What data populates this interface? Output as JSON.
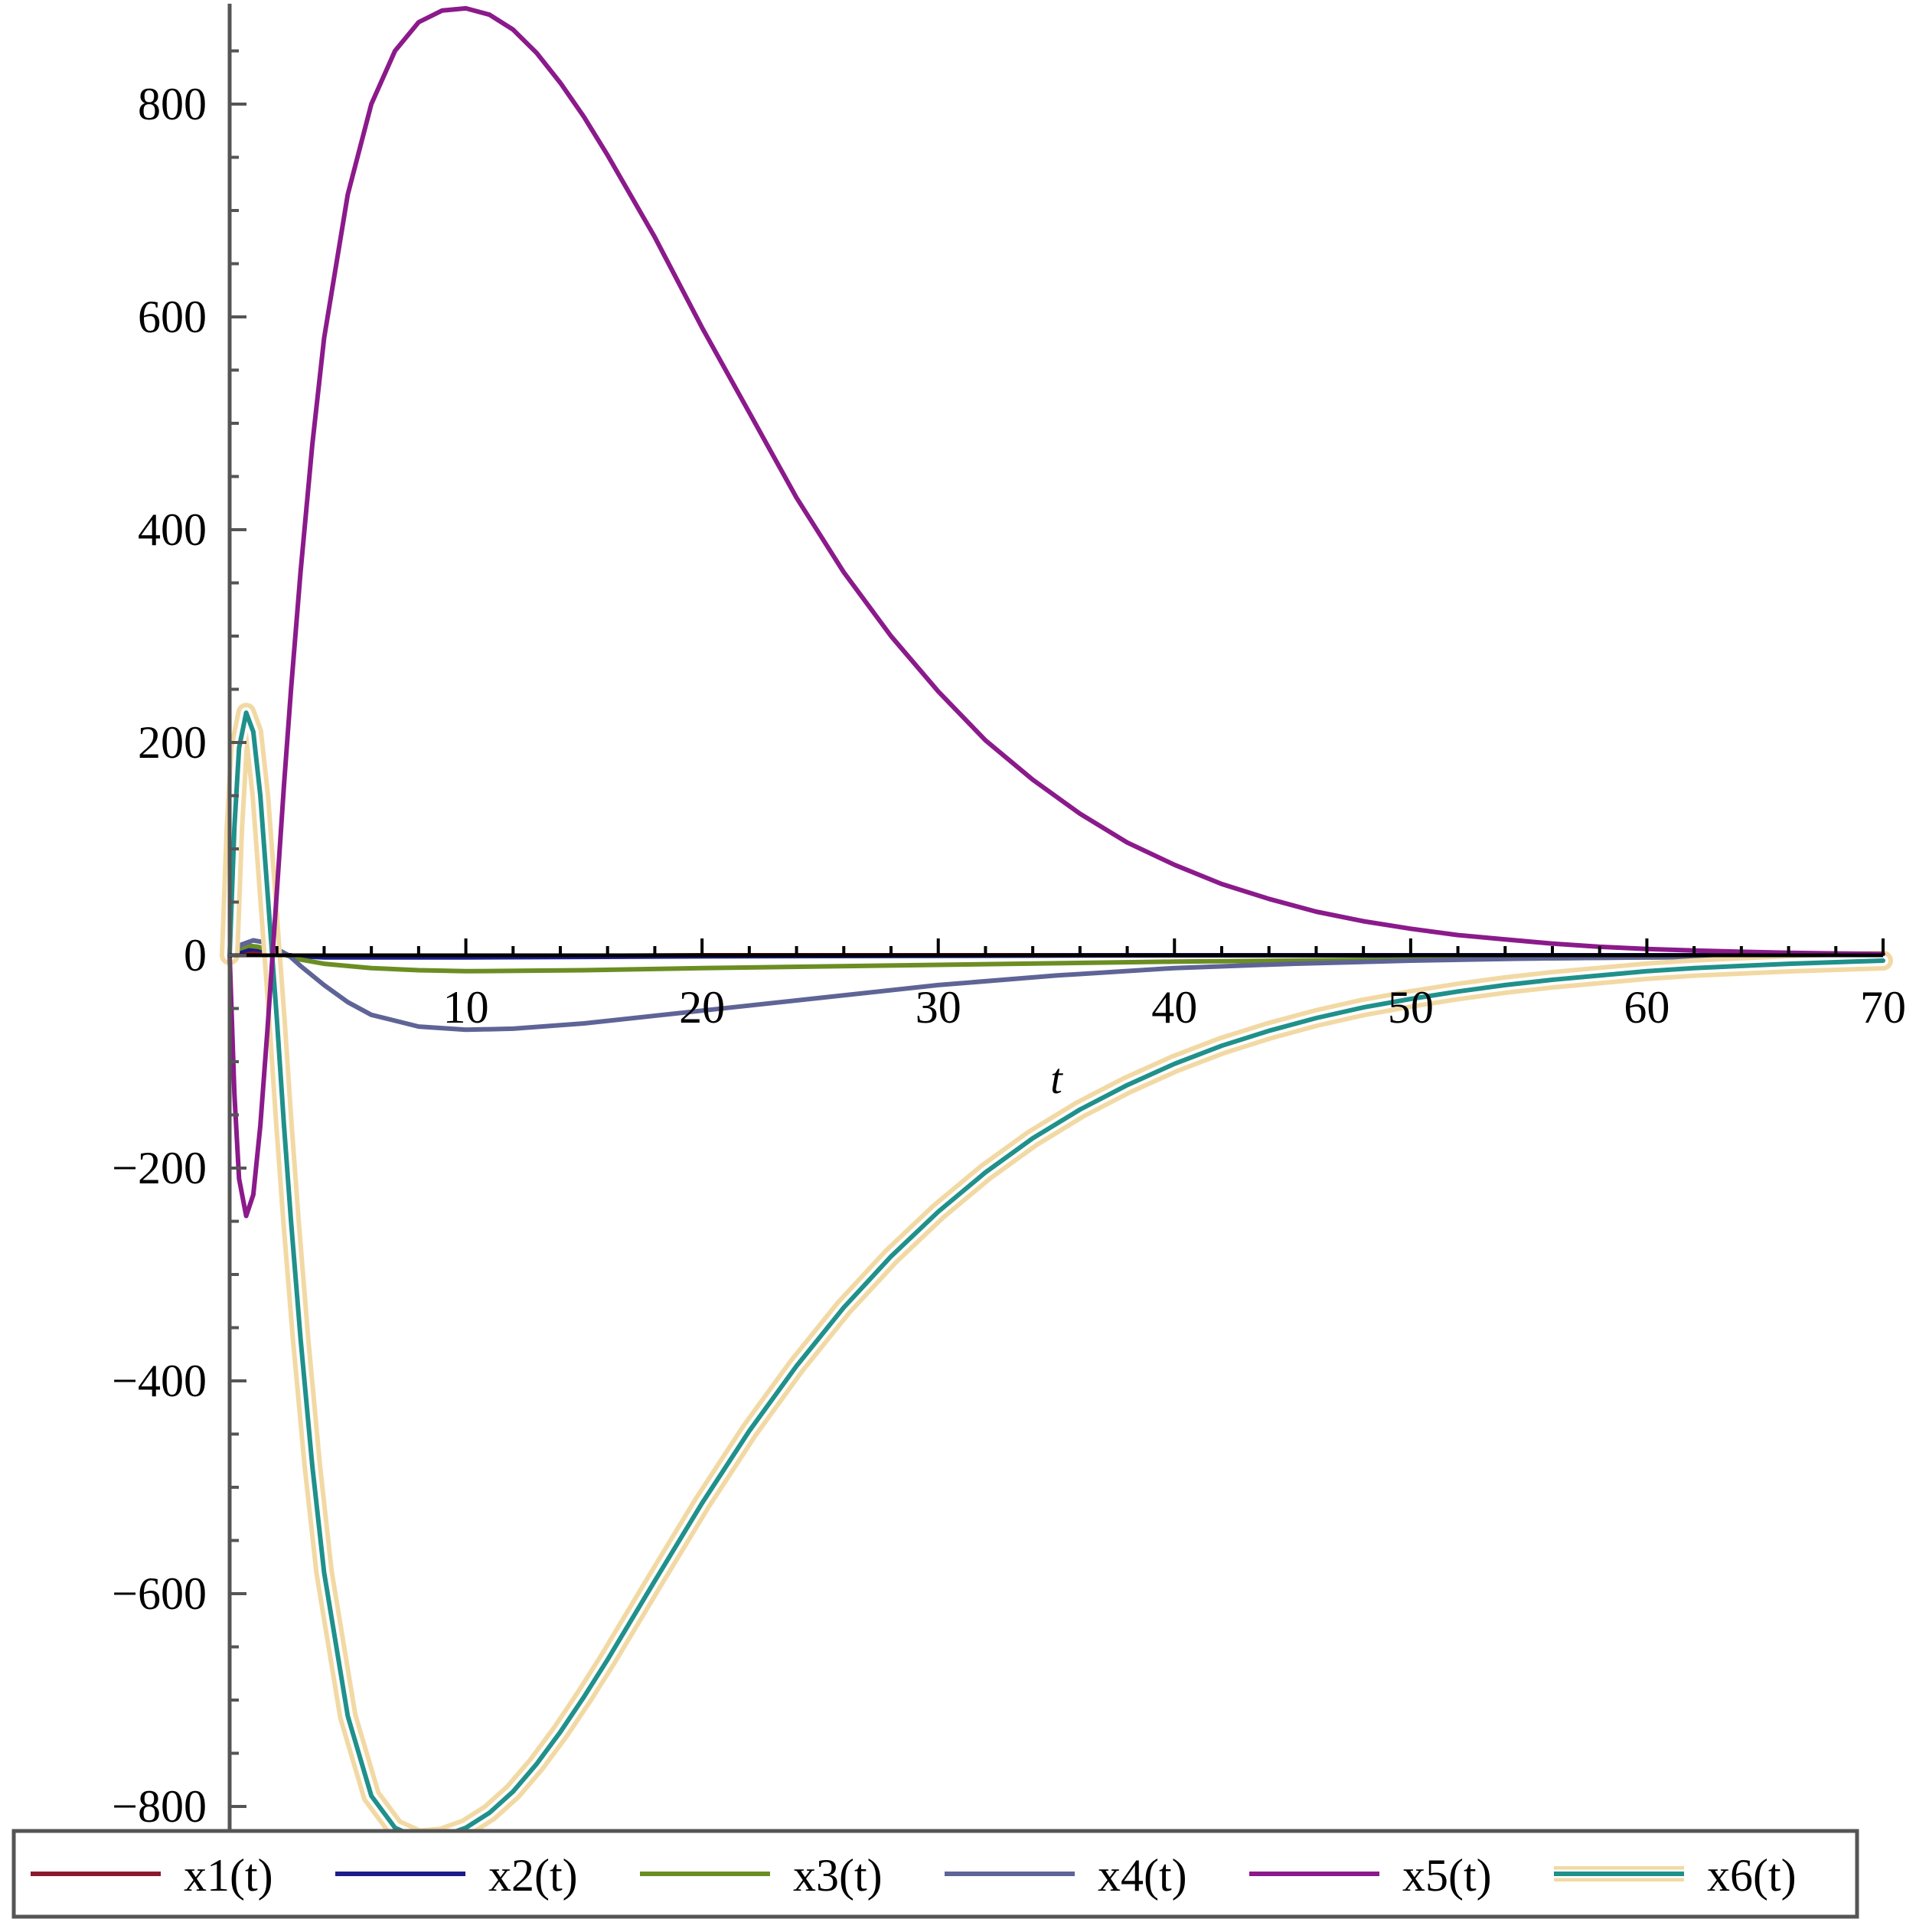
{
  "chart_data": {
    "type": "line",
    "title": "",
    "xlabel": "t",
    "ylabel": "",
    "xlim": [
      0,
      70
    ],
    "ylim": [
      -820,
      890
    ],
    "x_ticks": [
      10,
      20,
      30,
      40,
      50,
      60,
      70
    ],
    "y_ticks": [
      -800,
      -600,
      -400,
      -200,
      0,
      200,
      400,
      600,
      800
    ],
    "x_tick_labels": [
      "10",
      "20",
      "30",
      "40",
      "50",
      "60",
      "70"
    ],
    "y_tick_labels": [
      "−800",
      "−600",
      "−400",
      "−200",
      "0",
      "200",
      "400",
      "600",
      "800"
    ],
    "grid": false,
    "legend_position": "bottom",
    "series": [
      {
        "name": "x1(t)",
        "color": "#8b1a2e",
        "x": [
          0,
          0.3,
          0.7,
          1,
          1.5,
          2,
          2.5,
          3,
          4,
          6,
          10,
          20,
          40,
          70
        ],
        "y": [
          0,
          2,
          3,
          4,
          3,
          2,
          0,
          -1,
          -1,
          -1,
          -1,
          0,
          0,
          0
        ]
      },
      {
        "name": "x2(t)",
        "color": "#1c1c8c",
        "x": [
          0,
          0.3,
          0.7,
          1,
          1.5,
          2,
          2.5,
          3,
          4,
          6,
          10,
          20,
          40,
          70
        ],
        "y": [
          0,
          3,
          5,
          6,
          5,
          3,
          0,
          -1,
          -2,
          -2,
          -2,
          -1,
          0,
          0
        ]
      },
      {
        "name": "x3(t)",
        "color": "#6b8e23",
        "x": [
          0,
          0.4,
          0.8,
          1.2,
          1.8,
          2.4,
          3,
          4,
          6,
          8,
          10,
          15,
          20,
          30,
          40,
          50,
          60,
          70
        ],
        "y": [
          0,
          6,
          9,
          8,
          4,
          0,
          -4,
          -8,
          -12,
          -14,
          -15,
          -14,
          -12,
          -9,
          -6,
          -4,
          -2,
          -1
        ]
      },
      {
        "name": "x4(t)",
        "color": "#5e6496",
        "x": [
          0,
          0.5,
          1,
          1.5,
          2,
          2.5,
          3,
          4,
          5,
          6,
          8,
          10,
          12,
          15,
          20,
          25,
          30,
          35,
          40,
          45,
          50,
          55,
          60,
          65,
          70
        ],
        "y": [
          0,
          10,
          14,
          12,
          6,
          0,
          -10,
          -28,
          -44,
          -56,
          -67,
          -70,
          -69,
          -64,
          -52,
          -40,
          -28,
          -19,
          -12,
          -8,
          -5,
          -3,
          -2,
          -1,
          -0.5
        ]
      },
      {
        "name": "x5(t)",
        "color": "#8b1a8b",
        "x": [
          0,
          0.2,
          0.4,
          0.7,
          1,
          1.3,
          1.6,
          2,
          2.3,
          2.6,
          3,
          3.5,
          4,
          5,
          6,
          7,
          8,
          9,
          10,
          11,
          12,
          13,
          14,
          15,
          16,
          18,
          20,
          22,
          24,
          26,
          28,
          30,
          32,
          34,
          36,
          38,
          40,
          42,
          44,
          46,
          48,
          50,
          52,
          54,
          56,
          58,
          60,
          62,
          64,
          66,
          68,
          70
        ],
        "y": [
          0,
          -130,
          -210,
          -245,
          -225,
          -160,
          -70,
          60,
          160,
          250,
          360,
          480,
          580,
          715,
          800,
          850,
          877,
          888,
          890,
          884,
          870,
          848,
          820,
          788,
          752,
          675,
          590,
          510,
          430,
          360,
          300,
          248,
          202,
          165,
          133,
          106,
          85,
          67,
          53,
          41,
          32,
          25,
          19,
          15,
          11,
          8,
          6,
          4.5,
          3.3,
          2.4,
          1.7,
          1.2
        ]
      },
      {
        "name": "x6(t)",
        "color": "#20908a",
        "halo": "#f2d9a4",
        "x": [
          0,
          0.2,
          0.4,
          0.7,
          1,
          1.3,
          1.6,
          2,
          2.3,
          2.6,
          3,
          3.5,
          4,
          5,
          6,
          7,
          8,
          9,
          10,
          11,
          12,
          13,
          14,
          15,
          16,
          18,
          20,
          22,
          24,
          26,
          28,
          30,
          32,
          34,
          36,
          38,
          40,
          42,
          44,
          46,
          48,
          50,
          52,
          54,
          56,
          58,
          60,
          62,
          64,
          66,
          68,
          70
        ],
        "y": [
          0,
          120,
          195,
          228,
          210,
          150,
          60,
          -60,
          -160,
          -250,
          -360,
          -480,
          -580,
          -715,
          -790,
          -820,
          -830,
          -828,
          -820,
          -806,
          -786,
          -760,
          -730,
          -697,
          -662,
          -588,
          -515,
          -447,
          -386,
          -331,
          -283,
          -241,
          -204,
          -172,
          -145,
          -122,
          -102,
          -85,
          -71,
          -59,
          -49,
          -41,
          -34,
          -28,
          -23,
          -19,
          -15,
          -12,
          -10,
          -8,
          -6.5,
          -5
        ]
      }
    ]
  }
}
